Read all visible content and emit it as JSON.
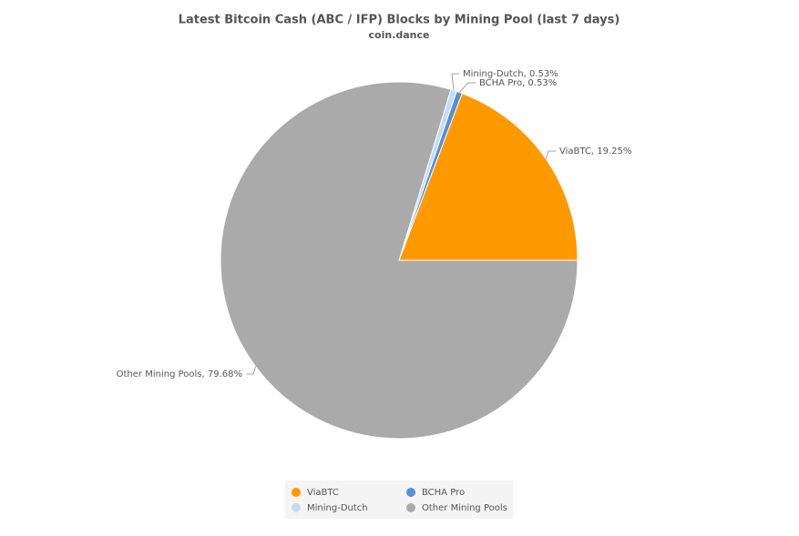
{
  "chart_data": {
    "type": "pie",
    "title": "Latest Bitcoin Cash (ABC / IFP) Blocks by Mining Pool (last 7 days)",
    "subtitle": "coin.dance",
    "categories": [
      "ViaBTC",
      "BCHA Pro",
      "Mining-Dutch",
      "Other Mining Pools"
    ],
    "values": [
      19.25,
      0.53,
      0.53,
      79.68
    ],
    "value_labels": [
      "ViaBTC, 19.25%",
      "BCHA Pro, 0.53%",
      "Mining-Dutch, 0.53%",
      "Other Mining Pools, 79.68%"
    ],
    "colors": [
      "#ff9900",
      "#5b8fd0",
      "#c6dbf5",
      "#aaaaaa"
    ],
    "legend": "bottom"
  }
}
